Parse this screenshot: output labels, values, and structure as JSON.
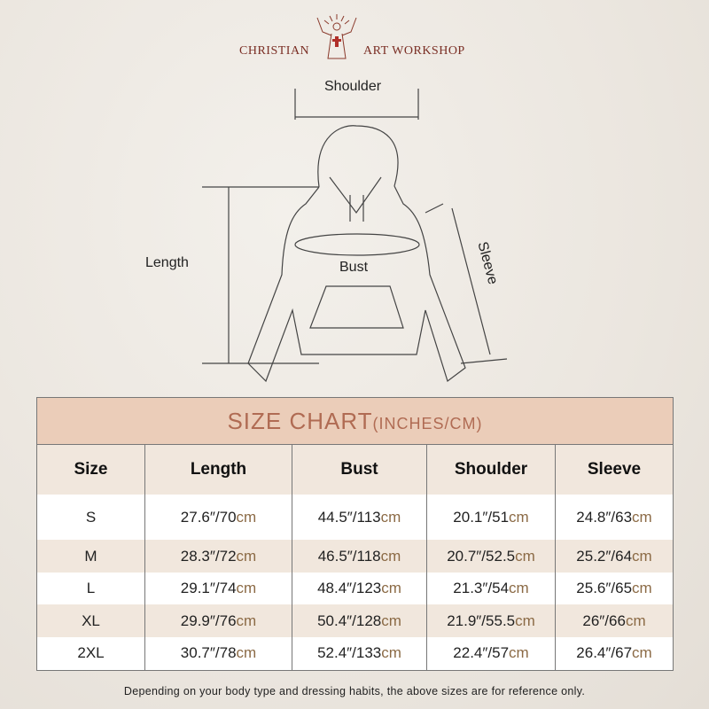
{
  "brand": {
    "left": "CHRISTIAN",
    "right": "ART WORKSHOP",
    "logo_icon": "jesus-cross-icon",
    "color": "#7a2e24"
  },
  "diagram": {
    "shoulder": "Shoulder",
    "length": "Length",
    "bust": "Bust",
    "sleeve": "Sleeve"
  },
  "chart": {
    "title": "SIZE CHART",
    "unit": "(INCHES/CM)",
    "columns": [
      "Size",
      "Length",
      "Bust",
      "Shoulder",
      "Sleeve"
    ],
    "rows": [
      {
        "size": "S",
        "values": [
          [
            "27.6″/70",
            "cm"
          ],
          [
            "44.5″/113",
            "cm"
          ],
          [
            "20.1″/51",
            "cm"
          ],
          [
            "24.8″/63",
            "cm"
          ]
        ]
      },
      {
        "size": "M",
        "values": [
          [
            "28.3″/72",
            "cm"
          ],
          [
            "46.5″/118",
            "cm"
          ],
          [
            "20.7″/52.5",
            "cm"
          ],
          [
            "25.2″/64",
            "cm"
          ]
        ]
      },
      {
        "size": "L",
        "values": [
          [
            "29.1″/74",
            "cm"
          ],
          [
            "48.4″/123",
            "cm"
          ],
          [
            "21.3″/54",
            "cm"
          ],
          [
            "25.6″/65",
            "cm"
          ]
        ]
      },
      {
        "size": "XL",
        "values": [
          [
            "29.9″/76",
            "cm"
          ],
          [
            "50.4″/128",
            "cm"
          ],
          [
            "21.9″/55.5",
            "cm"
          ],
          [
            "26″/66",
            "cm"
          ]
        ]
      },
      {
        "size": "2XL",
        "values": [
          [
            "30.7″/78",
            "cm"
          ],
          [
            "52.4″/133",
            "cm"
          ],
          [
            "22.4″/57",
            "cm"
          ],
          [
            "26.4″/67",
            "cm"
          ]
        ]
      }
    ],
    "colors": {
      "title_bg": "#ebcdb9",
      "title_text": "#b06b53",
      "alt_row": "#f1e7dd",
      "cm_text": "#8b6a45"
    }
  },
  "note": "Depending on your body type and dressing habits, the above sizes are for reference only."
}
